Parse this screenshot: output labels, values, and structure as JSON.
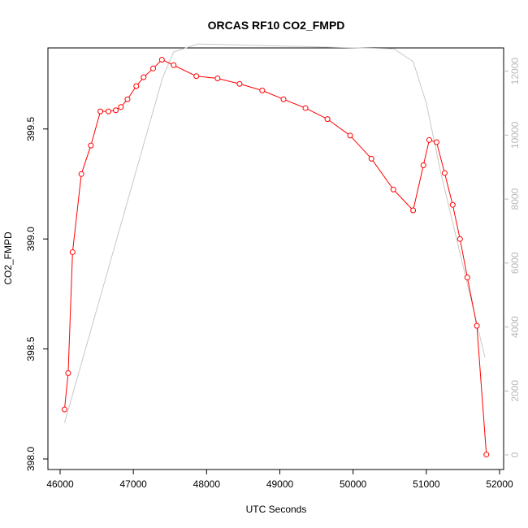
{
  "chart_data": {
    "type": "line",
    "title": "ORCAS RF10 CO2_FMPD",
    "xlabel": "UTC Seconds",
    "ylabel": "CO2_FMPD",
    "xlim": [
      46000,
      52000
    ],
    "ylim": [
      398.0,
      399.85
    ],
    "y2lim": [
      0,
      12600
    ],
    "x_ticks": [
      46000,
      47000,
      48000,
      49000,
      50000,
      51000,
      52000
    ],
    "y_ticks": [
      398.0,
      398.5,
      399.0,
      399.5
    ],
    "y_tick_labels": [
      "398.0",
      "398.5",
      "399.0",
      "399.5"
    ],
    "y2_ticks": [
      0,
      2000,
      4000,
      6000,
      8000,
      10000,
      12000
    ],
    "grid": false,
    "colors": {
      "primary": "#ff0000",
      "secondary": "#c8c8c8",
      "secondary_axis": "#b8b8b8"
    },
    "series": [
      {
        "axis": "left",
        "style": "line-points",
        "x": [
          46060,
          46110,
          46170,
          46290,
          46420,
          46550,
          46660,
          46760,
          46830,
          46920,
          47040,
          47140,
          47270,
          47390,
          47550,
          47860,
          48150,
          48450,
          48760,
          49050,
          49350,
          49650,
          49960,
          50250,
          50550,
          50820,
          50960,
          51040,
          51140,
          51250,
          51360,
          51460,
          51560,
          51690,
          51820
        ],
        "y": [
          398.225,
          398.39,
          398.94,
          399.295,
          399.425,
          399.58,
          399.58,
          399.585,
          399.6,
          399.635,
          399.695,
          399.735,
          399.775,
          399.815,
          399.79,
          399.74,
          399.73,
          399.705,
          399.675,
          399.635,
          399.595,
          399.545,
          399.47,
          399.365,
          399.225,
          399.13,
          399.335,
          399.45,
          399.44,
          399.3,
          399.155,
          399.0,
          398.825,
          398.605,
          398.02
        ]
      },
      {
        "axis": "right",
        "style": "line",
        "x": [
          46060,
          47400,
          47550,
          47880,
          50560,
          50820,
          51000,
          51200,
          51800
        ],
        "y": [
          1000,
          11800,
          12600,
          12850,
          12700,
          12300,
          11000,
          8800,
          3050
        ]
      }
    ]
  }
}
